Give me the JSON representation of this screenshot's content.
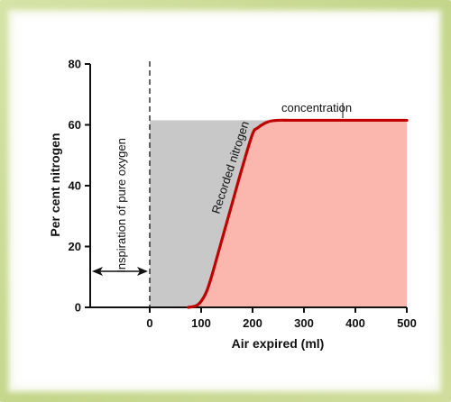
{
  "chart_data": {
    "type": "area",
    "title": "",
    "xlabel": "Air expired (ml)",
    "ylabel": "Per cent nitrogen",
    "xlim": [
      0,
      500
    ],
    "ylim": [
      0,
      80
    ],
    "x_ticks": [
      0,
      100,
      200,
      300,
      400,
      500
    ],
    "y_ticks": [
      0,
      20,
      40,
      60,
      80
    ],
    "grid": false,
    "series": [
      {
        "name": "Recorded nitrogen concentration",
        "color": "#c00000",
        "fill_color": "#fbb7ad",
        "x": [
          75,
          90,
          100,
          110,
          120,
          140,
          160,
          180,
          200,
          210,
          230,
          250,
          270,
          300,
          400,
          500
        ],
        "y": [
          0,
          0.5,
          2,
          5,
          10,
          22,
          34,
          46,
          57,
          59,
          61,
          61.5,
          61.5,
          61.5,
          61.5,
          61.5
        ]
      }
    ],
    "dead_space_fill": {
      "color": "#c8c8c8",
      "x": [
        0,
        500
      ],
      "y": 61.5
    },
    "annotations": {
      "inspiration": "Inspiration of pure oxygen",
      "recorded": "Recorded nitrogen concentration"
    }
  }
}
